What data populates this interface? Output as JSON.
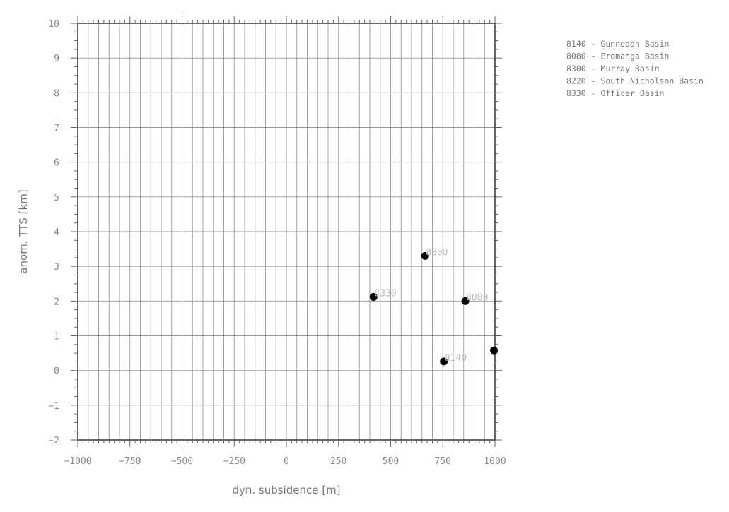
{
  "chart_data": {
    "type": "scatter",
    "title": "",
    "xlabel": "dyn. subsidence [m]",
    "ylabel": "anom. TTS [km]",
    "xlim": [
      -1000,
      1000
    ],
    "ylim": [
      -2,
      10
    ],
    "x_tick_labels": [
      "−1000",
      "−750",
      "−500",
      "−250",
      "0",
      "250",
      "500",
      "750",
      "1000"
    ],
    "y_tick_labels": [
      "−2",
      "−1",
      "0",
      "1",
      "2",
      "3",
      "4",
      "5",
      "6",
      "7",
      "8",
      "9",
      "10"
    ],
    "grid": true,
    "points": [
      {
        "id": "8140",
        "label": "8140",
        "x": 755,
        "y": 0.26
      },
      {
        "id": "8080",
        "label": "8080",
        "x": 858,
        "y": 2.0
      },
      {
        "id": "8300",
        "label": "8300",
        "x": 665,
        "y": 3.3
      },
      {
        "id": "8220",
        "label": "",
        "x": 995,
        "y": 0.58
      },
      {
        "id": "8330",
        "label": "8330",
        "x": 418,
        "y": 2.12
      }
    ],
    "legend_position": "top-right",
    "legend": [
      "8140 - Gunnedah Basin",
      "8080 - Eromanga Basin",
      "8300 - Murray Basin",
      "8220 - South Nicholson Basin",
      "8330 - Officer Basin"
    ],
    "colors": {
      "marker": "#000000",
      "grid": "#999999",
      "frame": "#666666",
      "tick_text": "#888888",
      "point_label": "#bbbbbb"
    }
  }
}
